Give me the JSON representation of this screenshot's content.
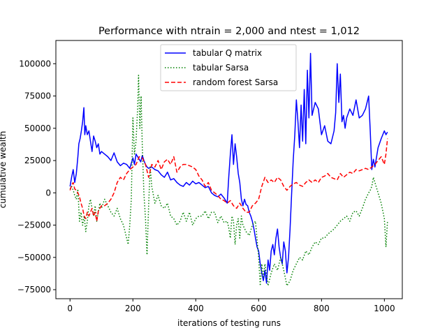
{
  "chart_data": {
    "type": "line",
    "title": "Performance with ntrain = 2,000 and ntest = 1,012",
    "xlabel": "iterations of testing runs",
    "ylabel": "cumulative wealth",
    "xlim": [
      -45,
      1057
    ],
    "ylim": [
      -82000,
      118000
    ],
    "xticks": [
      0,
      200,
      400,
      600,
      800,
      1000
    ],
    "yticks": [
      -75000,
      -50000,
      -25000,
      0,
      25000,
      50000,
      75000,
      100000
    ],
    "xtick_labels": [
      "0",
      "200",
      "400",
      "600",
      "800",
      "1000"
    ],
    "ytick_labels": [
      "−75000",
      "−50000",
      "−25000",
      "0",
      "25000",
      "50000",
      "75000",
      "100000"
    ],
    "grid": false,
    "legend": "upper-center",
    "series": [
      {
        "name": "tabular Q matrix",
        "color": "#0000ff",
        "style": "solid",
        "x": [
          0,
          5,
          10,
          15,
          20,
          25,
          28,
          32,
          36,
          40,
          44,
          47,
          50,
          55,
          60,
          65,
          70,
          75,
          80,
          85,
          90,
          95,
          100,
          110,
          120,
          130,
          140,
          150,
          160,
          170,
          180,
          190,
          200,
          205,
          210,
          215,
          220,
          225,
          230,
          235,
          240,
          245,
          250,
          260,
          270,
          280,
          290,
          300,
          310,
          320,
          330,
          340,
          350,
          360,
          370,
          380,
          390,
          400,
          410,
          420,
          430,
          440,
          450,
          460,
          470,
          480,
          490,
          500,
          505,
          510,
          515,
          520,
          525,
          530,
          535,
          540,
          545,
          550,
          555,
          560,
          565,
          570,
          575,
          580,
          585,
          590,
          595,
          600,
          605,
          610,
          615,
          620,
          625,
          630,
          635,
          640,
          645,
          650,
          655,
          660,
          665,
          670,
          675,
          680,
          685,
          690,
          695,
          700,
          705,
          710,
          715,
          720,
          725,
          730,
          735,
          740,
          745,
          750,
          755,
          760,
          765,
          770,
          780,
          790,
          800,
          810,
          820,
          830,
          840,
          845,
          850,
          855,
          860,
          865,
          870,
          875,
          880,
          890,
          900,
          910,
          920,
          930,
          940,
          950,
          955,
          960,
          965,
          970,
          980,
          990,
          1000,
          1005,
          1010
        ],
        "y": [
          5000,
          12000,
          18000,
          8000,
          15000,
          28000,
          38000,
          42000,
          48000,
          55000,
          66000,
          45000,
          52000,
          45000,
          48000,
          40000,
          32000,
          44000,
          40000,
          35000,
          38000,
          30000,
          32000,
          30000,
          28000,
          25000,
          31000,
          24000,
          21000,
          23000,
          22000,
          19000,
          27000,
          22000,
          30000,
          28000,
          26000,
          24000,
          29000,
          25000,
          22000,
          20000,
          19000,
          20000,
          18000,
          17000,
          14000,
          12000,
          16000,
          10000,
          11000,
          8000,
          6000,
          5000,
          8000,
          6000,
          9000,
          7000,
          8000,
          6000,
          4000,
          5000,
          0,
          -2000,
          -3000,
          -1000,
          -4000,
          -8000,
          12000,
          30000,
          45000,
          22000,
          38000,
          28000,
          15000,
          8000,
          -5000,
          -10000,
          -5000,
          -9000,
          -10000,
          -15000,
          -18000,
          -22000,
          -28000,
          -35000,
          -42000,
          -45000,
          -55000,
          -62000,
          -68000,
          -60000,
          -70000,
          -52000,
          -60000,
          -45000,
          -40000,
          -48000,
          -35000,
          -28000,
          -42000,
          -50000,
          -55000,
          -38000,
          -45000,
          -62000,
          -50000,
          -28000,
          0,
          25000,
          45000,
          72000,
          55000,
          35000,
          68000,
          40000,
          80000,
          38000,
          95000,
          58000,
          108000,
          60000,
          70000,
          65000,
          45000,
          52000,
          40000,
          38000,
          48000,
          62000,
          100000,
          70000,
          92000,
          55000,
          60000,
          50000,
          58000,
          65000,
          60000,
          72000,
          58000,
          60000,
          65000,
          75000,
          48000,
          18000,
          26000,
          20000,
          35000,
          42000,
          48000,
          45000,
          47000
        ]
      },
      {
        "name": "tabular Sarsa",
        "color": "#008000",
        "style": "dotted",
        "x": [
          0,
          5,
          10,
          15,
          20,
          25,
          30,
          35,
          40,
          45,
          50,
          55,
          60,
          65,
          70,
          75,
          80,
          85,
          90,
          95,
          100,
          110,
          120,
          130,
          140,
          150,
          160,
          170,
          180,
          185,
          190,
          195,
          200,
          205,
          210,
          215,
          218,
          222,
          226,
          230,
          235,
          240,
          245,
          250,
          255,
          260,
          270,
          280,
          290,
          300,
          310,
          320,
          330,
          340,
          350,
          360,
          370,
          380,
          390,
          400,
          410,
          420,
          430,
          440,
          450,
          460,
          470,
          480,
          490,
          500,
          505,
          510,
          515,
          520,
          525,
          530,
          535,
          540,
          545,
          550,
          560,
          570,
          580,
          590,
          600,
          605,
          610,
          615,
          620,
          630,
          640,
          650,
          660,
          670,
          680,
          690,
          700,
          710,
          720,
          730,
          740,
          750,
          760,
          770,
          780,
          790,
          800,
          810,
          820,
          830,
          840,
          850,
          860,
          870,
          880,
          890,
          900,
          910,
          920,
          930,
          940,
          950,
          955,
          960,
          965,
          970,
          980,
          990,
          1000,
          1005,
          1010
        ],
        "y": [
          3000,
          5000,
          2000,
          -2000,
          -5000,
          3000,
          -22000,
          -15000,
          -25000,
          -18000,
          -30000,
          -22000,
          -10000,
          -5000,
          -12000,
          -18000,
          -10000,
          -22000,
          -15000,
          -8000,
          -12000,
          -5000,
          -10000,
          -15000,
          -18000,
          -12000,
          -20000,
          -25000,
          -35000,
          -40000,
          -25000,
          -5000,
          58000,
          30000,
          40000,
          65000,
          91000,
          50000,
          75000,
          35000,
          0,
          -20000,
          -48000,
          -10000,
          20000,
          5000,
          -8000,
          -2000,
          -10000,
          -12000,
          -8000,
          -18000,
          -20000,
          -25000,
          -22000,
          -15000,
          -22000,
          -15000,
          -25000,
          -20000,
          -18000,
          -18000,
          -14000,
          -20000,
          -15000,
          -15000,
          -23000,
          -18000,
          -23000,
          -22000,
          -27000,
          -35000,
          -18000,
          -22000,
          -40000,
          -25000,
          -20000,
          -35000,
          -18000,
          -25000,
          -30000,
          -33000,
          -25000,
          -22000,
          -50000,
          -72000,
          -55000,
          -65000,
          -55000,
          -72000,
          -62000,
          -55000,
          -60000,
          -50000,
          -60000,
          -72000,
          -68000,
          -60000,
          -55000,
          -50000,
          -52000,
          -45000,
          -48000,
          -42000,
          -38000,
          -40000,
          -35000,
          -35000,
          -32000,
          -30000,
          -28000,
          -25000,
          -22000,
          -20000,
          -18000,
          -22000,
          -15000,
          -14000,
          -18000,
          -12000,
          -5000,
          0,
          2000,
          5000,
          12000,
          8000,
          0,
          -8000,
          -20000,
          -42000,
          -22000
        ]
      },
      {
        "name": "random forest Sarsa",
        "color": "#ff0000",
        "style": "dashed",
        "x": [
          0,
          5,
          10,
          15,
          20,
          25,
          30,
          35,
          40,
          45,
          50,
          55,
          60,
          65,
          70,
          75,
          80,
          85,
          90,
          95,
          100,
          110,
          120,
          130,
          140,
          150,
          160,
          170,
          180,
          190,
          200,
          210,
          220,
          230,
          240,
          250,
          260,
          270,
          280,
          290,
          300,
          310,
          320,
          330,
          340,
          350,
          360,
          370,
          380,
          390,
          400,
          410,
          420,
          430,
          440,
          450,
          460,
          470,
          480,
          490,
          500,
          510,
          520,
          530,
          540,
          550,
          560,
          570,
          580,
          590,
          600,
          610,
          620,
          630,
          640,
          650,
          660,
          670,
          680,
          690,
          700,
          710,
          720,
          730,
          740,
          750,
          760,
          770,
          780,
          790,
          800,
          810,
          820,
          830,
          840,
          850,
          860,
          870,
          880,
          890,
          900,
          910,
          920,
          930,
          940,
          950,
          960,
          970,
          980,
          990,
          1000,
          1005,
          1010
        ],
        "y": [
          2000,
          6000,
          8000,
          3000,
          2000,
          0,
          -3000,
          -8000,
          -12000,
          -18000,
          -20000,
          -15000,
          -18000,
          -15000,
          -12000,
          -18000,
          -15000,
          -22000,
          -14000,
          -12000,
          -10000,
          -10000,
          -8000,
          -5000,
          0,
          8000,
          12000,
          10000,
          15000,
          18000,
          20000,
          22000,
          28000,
          27000,
          22000,
          12000,
          22000,
          20000,
          25000,
          18000,
          24000,
          26000,
          22000,
          28000,
          16000,
          20000,
          22000,
          22000,
          21000,
          20000,
          18000,
          13000,
          10000,
          5000,
          8000,
          2000,
          0,
          -2000,
          -5000,
          -6000,
          -8000,
          -6000,
          -10000,
          -12000,
          -8000,
          -12000,
          -15000,
          -15000,
          -10000,
          -8000,
          -5000,
          5000,
          12000,
          8000,
          10000,
          8000,
          12000,
          10000,
          5000,
          2000,
          5000,
          7000,
          8000,
          6000,
          5000,
          8000,
          10000,
          8000,
          10000,
          8000,
          12000,
          13000,
          15000,
          12000,
          11000,
          10000,
          15000,
          12000,
          14000,
          16000,
          15000,
          18000,
          17000,
          18000,
          19000,
          18000,
          20000,
          22000,
          25000,
          28000,
          22000,
          30000,
          42000
        ]
      }
    ]
  }
}
